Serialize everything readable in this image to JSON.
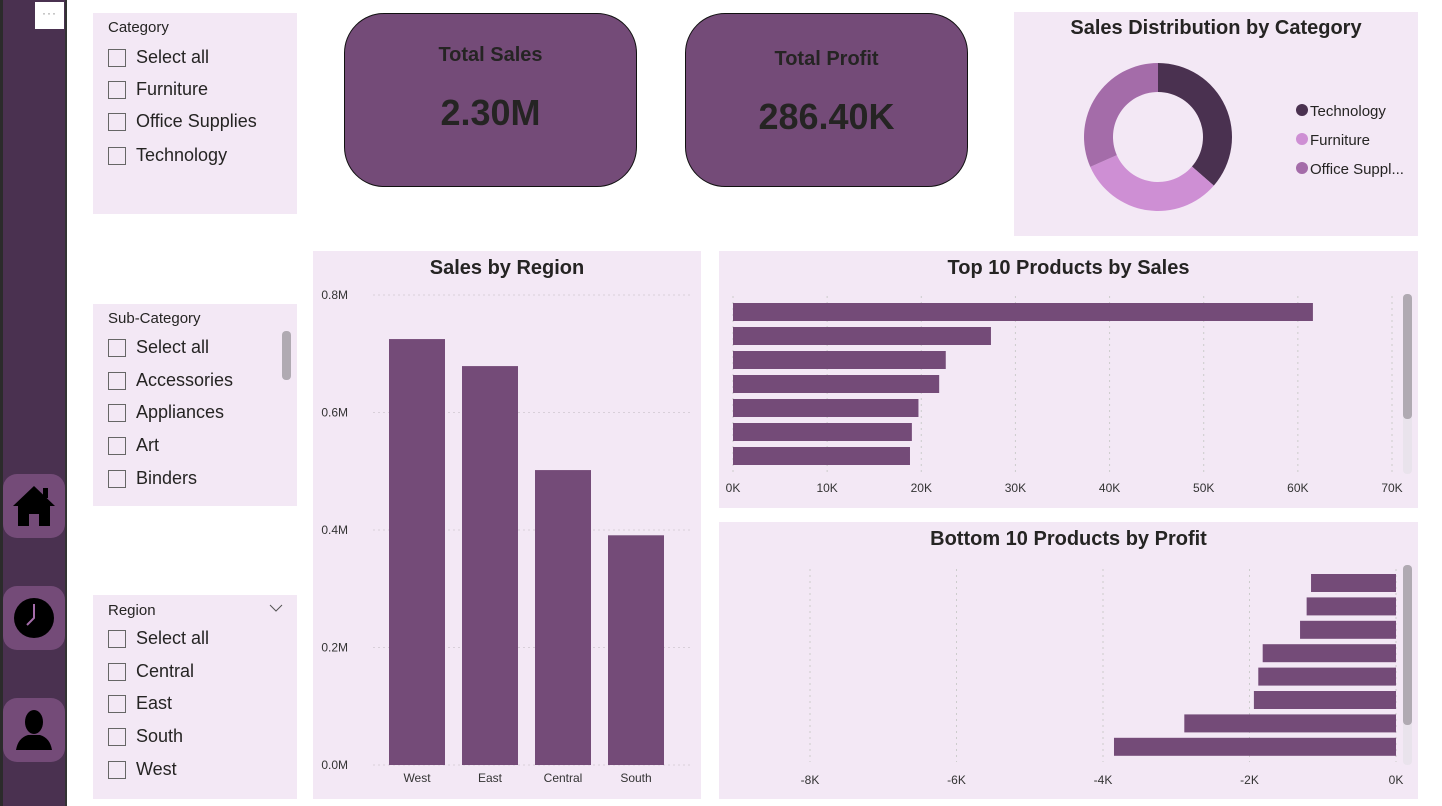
{
  "colors": {
    "sidebar": "#4a3150",
    "panel": "#f3e8f5",
    "bar": "#744b78",
    "technology": "#4a3150",
    "furniture": "#ce8fd4",
    "office_supplies": "#a46ca9"
  },
  "toolbar": {
    "more_label": "···"
  },
  "nav": [
    {
      "icon": "home-icon"
    },
    {
      "icon": "clock-icon"
    },
    {
      "icon": "person-icon"
    }
  ],
  "slicers": {
    "category": {
      "title": "Category",
      "options": [
        "Select all",
        "Furniture",
        "Office Supplies",
        "Technology"
      ]
    },
    "subcategory": {
      "title": "Sub-Category",
      "options": [
        "Select all",
        "Accessories",
        "Appliances",
        "Art",
        "Binders"
      ]
    },
    "region": {
      "title": "Region",
      "options": [
        "Select all",
        "Central",
        "East",
        "South",
        "West"
      ]
    }
  },
  "kpis": {
    "total_sales": {
      "label": "Total Sales",
      "value": "2.30M"
    },
    "total_profit": {
      "label": "Total Profit",
      "value": "286.40K"
    }
  },
  "chart_data": [
    {
      "type": "pie",
      "title": "Sales Distribution by Category",
      "donut": true,
      "categories": [
        "Technology",
        "Furniture",
        "Office Suppl..."
      ],
      "values": [
        36.4,
        32.0,
        31.6
      ],
      "legend": "right"
    },
    {
      "type": "bar",
      "title": "Sales by Region",
      "categories": [
        "West",
        "East",
        "Central",
        "South"
      ],
      "values": [
        0.725,
        0.679,
        0.502,
        0.391
      ],
      "ylim": [
        0,
        0.8
      ],
      "yticks": [
        "0.0M",
        "0.2M",
        "0.4M",
        "0.6M",
        "0.8M"
      ],
      "grid": true
    },
    {
      "type": "bar",
      "orientation": "horizontal",
      "title": "Top 10 Products by Sales",
      "values": [
        61600,
        27400,
        22600,
        21900,
        19700,
        19000,
        18800
      ],
      "xlim": [
        0,
        70000
      ],
      "xticks": [
        "0K",
        "10K",
        "20K",
        "30K",
        "40K",
        "50K",
        "60K",
        "70K"
      ],
      "grid": true
    },
    {
      "type": "bar",
      "orientation": "horizontal",
      "title": "Bottom 10 Products by Profit",
      "values": [
        -1160,
        -1220,
        -1310,
        -1820,
        -1880,
        -1940,
        -2890,
        -3850
      ],
      "xlim": [
        -9000,
        0
      ],
      "xticks": [
        "-8K",
        "-6K",
        "-4K",
        "-2K",
        "0K"
      ],
      "grid": true
    }
  ]
}
